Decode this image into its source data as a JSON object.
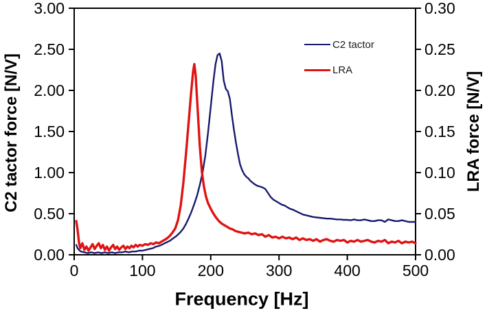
{
  "chart_data": {
    "type": "line",
    "title": "",
    "xlabel": "Frequency [Hz]",
    "ylabel_left": "C2 tactor force [N/V]",
    "ylabel_right": "LRA force [N/V]",
    "x_range": [
      0,
      500
    ],
    "y_left_range": [
      0,
      3.0
    ],
    "y_right_range": [
      0,
      0.3
    ],
    "grid": false,
    "legend_position": "inside-upper-right",
    "x_tick_labels": [
      "0",
      "100",
      "200",
      "300",
      "400",
      "500"
    ],
    "y_left_tick_labels": [
      "0.00",
      "0.50",
      "1.00",
      "1.50",
      "2.00",
      "2.50",
      "3.00"
    ],
    "y_right_tick_labels": [
      "0.00",
      "0.05",
      "0.10",
      "0.15",
      "0.20",
      "0.25",
      "0.30"
    ],
    "series": [
      {
        "name": "C2 tactor",
        "axis": "left",
        "color": "#18186e",
        "line_width": 2.4,
        "points": [
          [
            3,
            0.12
          ],
          [
            5,
            0.08
          ],
          [
            8,
            0.05
          ],
          [
            10,
            0.04
          ],
          [
            15,
            0.03
          ],
          [
            20,
            0.02
          ],
          [
            25,
            0.03
          ],
          [
            30,
            0.02
          ],
          [
            35,
            0.03
          ],
          [
            40,
            0.02
          ],
          [
            45,
            0.03
          ],
          [
            50,
            0.02
          ],
          [
            55,
            0.03
          ],
          [
            60,
            0.02
          ],
          [
            65,
            0.03
          ],
          [
            70,
            0.03
          ],
          [
            75,
            0.04
          ],
          [
            80,
            0.03
          ],
          [
            85,
            0.04
          ],
          [
            90,
            0.04
          ],
          [
            95,
            0.05
          ],
          [
            100,
            0.05
          ],
          [
            105,
            0.06
          ],
          [
            110,
            0.07
          ],
          [
            115,
            0.08
          ],
          [
            120,
            0.1
          ],
          [
            125,
            0.11
          ],
          [
            130,
            0.13
          ],
          [
            135,
            0.15
          ],
          [
            140,
            0.17
          ],
          [
            145,
            0.2
          ],
          [
            150,
            0.23
          ],
          [
            155,
            0.27
          ],
          [
            160,
            0.32
          ],
          [
            164,
            0.38
          ],
          [
            168,
            0.45
          ],
          [
            172,
            0.53
          ],
          [
            176,
            0.62
          ],
          [
            180,
            0.72
          ],
          [
            184,
            0.85
          ],
          [
            188,
            1.0
          ],
          [
            192,
            1.2
          ],
          [
            196,
            1.48
          ],
          [
            200,
            1.8
          ],
          [
            204,
            2.12
          ],
          [
            207,
            2.32
          ],
          [
            210,
            2.43
          ],
          [
            213,
            2.45
          ],
          [
            216,
            2.36
          ],
          [
            219,
            2.12
          ],
          [
            222,
            2.02
          ],
          [
            225,
            1.99
          ],
          [
            228,
            1.9
          ],
          [
            231,
            1.7
          ],
          [
            234,
            1.52
          ],
          [
            237,
            1.36
          ],
          [
            240,
            1.22
          ],
          [
            243,
            1.1
          ],
          [
            246,
            1.03
          ],
          [
            249,
            0.98
          ],
          [
            252,
            0.95
          ],
          [
            255,
            0.93
          ],
          [
            258,
            0.9
          ],
          [
            261,
            0.88
          ],
          [
            264,
            0.86
          ],
          [
            268,
            0.84
          ],
          [
            272,
            0.83
          ],
          [
            276,
            0.82
          ],
          [
            280,
            0.8
          ],
          [
            284,
            0.75
          ],
          [
            288,
            0.7
          ],
          [
            292,
            0.67
          ],
          [
            296,
            0.65
          ],
          [
            300,
            0.63
          ],
          [
            304,
            0.61
          ],
          [
            308,
            0.6
          ],
          [
            312,
            0.58
          ],
          [
            316,
            0.56
          ],
          [
            320,
            0.55
          ],
          [
            325,
            0.53
          ],
          [
            330,
            0.51
          ],
          [
            335,
            0.49
          ],
          [
            340,
            0.48
          ],
          [
            345,
            0.47
          ],
          [
            350,
            0.46
          ],
          [
            355,
            0.455
          ],
          [
            360,
            0.45
          ],
          [
            365,
            0.445
          ],
          [
            370,
            0.44
          ],
          [
            375,
            0.44
          ],
          [
            380,
            0.435
          ],
          [
            385,
            0.43
          ],
          [
            390,
            0.43
          ],
          [
            395,
            0.425
          ],
          [
            400,
            0.425
          ],
          [
            405,
            0.42
          ],
          [
            410,
            0.43
          ],
          [
            415,
            0.42
          ],
          [
            420,
            0.42
          ],
          [
            425,
            0.43
          ],
          [
            430,
            0.42
          ],
          [
            435,
            0.41
          ],
          [
            440,
            0.41
          ],
          [
            445,
            0.42
          ],
          [
            450,
            0.42
          ],
          [
            455,
            0.4
          ],
          [
            460,
            0.43
          ],
          [
            465,
            0.42
          ],
          [
            470,
            0.41
          ],
          [
            475,
            0.41
          ],
          [
            480,
            0.42
          ],
          [
            485,
            0.41
          ],
          [
            490,
            0.4
          ],
          [
            495,
            0.4
          ],
          [
            500,
            0.4
          ]
        ]
      },
      {
        "name": "LRA",
        "axis": "right",
        "color": "#e01212",
        "line_width": 3.4,
        "points": [
          [
            3,
            0.041
          ],
          [
            5,
            0.03
          ],
          [
            7,
            0.015
          ],
          [
            9,
            0.008
          ],
          [
            12,
            0.014
          ],
          [
            15,
            0.006
          ],
          [
            18,
            0.01
          ],
          [
            21,
            0.005
          ],
          [
            24,
            0.009
          ],
          [
            27,
            0.013
          ],
          [
            30,
            0.007
          ],
          [
            33,
            0.011
          ],
          [
            36,
            0.014
          ],
          [
            39,
            0.008
          ],
          [
            42,
            0.012
          ],
          [
            45,
            0.006
          ],
          [
            48,
            0.01
          ],
          [
            51,
            0.005
          ],
          [
            54,
            0.009
          ],
          [
            57,
            0.012
          ],
          [
            60,
            0.007
          ],
          [
            63,
            0.01
          ],
          [
            66,
            0.006
          ],
          [
            69,
            0.009
          ],
          [
            72,
            0.011
          ],
          [
            75,
            0.007
          ],
          [
            78,
            0.01
          ],
          [
            81,
            0.008
          ],
          [
            84,
            0.011
          ],
          [
            87,
            0.009
          ],
          [
            90,
            0.012
          ],
          [
            93,
            0.01
          ],
          [
            96,
            0.012
          ],
          [
            100,
            0.011
          ],
          [
            104,
            0.013
          ],
          [
            108,
            0.012
          ],
          [
            112,
            0.014
          ],
          [
            116,
            0.013
          ],
          [
            120,
            0.015
          ],
          [
            124,
            0.014
          ],
          [
            128,
            0.016
          ],
          [
            132,
            0.018
          ],
          [
            136,
            0.02
          ],
          [
            140,
            0.023
          ],
          [
            144,
            0.027
          ],
          [
            148,
            0.032
          ],
          [
            152,
            0.042
          ],
          [
            156,
            0.06
          ],
          [
            160,
            0.088
          ],
          [
            164,
            0.125
          ],
          [
            168,
            0.165
          ],
          [
            171,
            0.195
          ],
          [
            174,
            0.222
          ],
          [
            176,
            0.232
          ],
          [
            178,
            0.218
          ],
          [
            181,
            0.175
          ],
          [
            184,
            0.132
          ],
          [
            187,
            0.101
          ],
          [
            190,
            0.083
          ],
          [
            193,
            0.071
          ],
          [
            196,
            0.063
          ],
          [
            200,
            0.056
          ],
          [
            204,
            0.05
          ],
          [
            208,
            0.045
          ],
          [
            212,
            0.041
          ],
          [
            216,
            0.038
          ],
          [
            220,
            0.036
          ],
          [
            224,
            0.034
          ],
          [
            228,
            0.032
          ],
          [
            232,
            0.031
          ],
          [
            236,
            0.029
          ],
          [
            240,
            0.028
          ],
          [
            245,
            0.027
          ],
          [
            250,
            0.026
          ],
          [
            255,
            0.027
          ],
          [
            260,
            0.025
          ],
          [
            265,
            0.026
          ],
          [
            270,
            0.024
          ],
          [
            275,
            0.025
          ],
          [
            280,
            0.022
          ],
          [
            285,
            0.024
          ],
          [
            290,
            0.021
          ],
          [
            295,
            0.022
          ],
          [
            300,
            0.02
          ],
          [
            305,
            0.022
          ],
          [
            310,
            0.02
          ],
          [
            315,
            0.021
          ],
          [
            320,
            0.019
          ],
          [
            325,
            0.021
          ],
          [
            330,
            0.018
          ],
          [
            335,
            0.02
          ],
          [
            340,
            0.018
          ],
          [
            345,
            0.019
          ],
          [
            350,
            0.017
          ],
          [
            355,
            0.019
          ],
          [
            360,
            0.016
          ],
          [
            365,
            0.018
          ],
          [
            370,
            0.019
          ],
          [
            375,
            0.017
          ],
          [
            380,
            0.016
          ],
          [
            385,
            0.018
          ],
          [
            390,
            0.017
          ],
          [
            395,
            0.018
          ],
          [
            400,
            0.015
          ],
          [
            405,
            0.017
          ],
          [
            410,
            0.016
          ],
          [
            415,
            0.018
          ],
          [
            420,
            0.016
          ],
          [
            425,
            0.017
          ],
          [
            430,
            0.018
          ],
          [
            435,
            0.016
          ],
          [
            440,
            0.015
          ],
          [
            445,
            0.017
          ],
          [
            450,
            0.016
          ],
          [
            455,
            0.018
          ],
          [
            460,
            0.014
          ],
          [
            465,
            0.016
          ],
          [
            470,
            0.015
          ],
          [
            475,
            0.017
          ],
          [
            480,
            0.014
          ],
          [
            485,
            0.016
          ],
          [
            490,
            0.015
          ],
          [
            495,
            0.016
          ],
          [
            500,
            0.014
          ]
        ]
      }
    ]
  },
  "legend": {
    "items": [
      {
        "label": "C2 tactor",
        "color": "#18186e"
      },
      {
        "label": "LRA",
        "color": "#e01212"
      }
    ]
  },
  "colors": {
    "axis": "#000000",
    "background": "#ffffff",
    "c2_line": "#18186e",
    "lra_line": "#e01212"
  }
}
